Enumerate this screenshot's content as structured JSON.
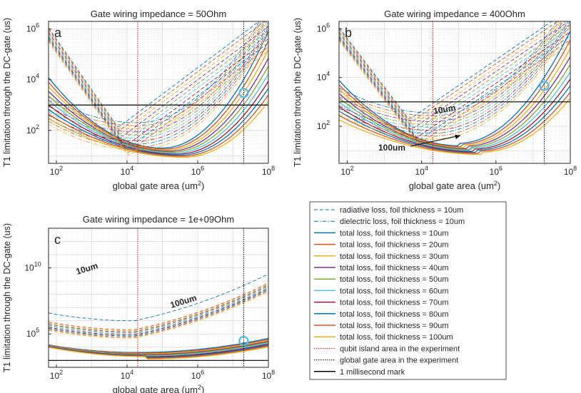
{
  "chart_data": [
    {
      "type": "line",
      "panel_letter": "a",
      "title": "Gate wiring impedance = 50Ohm",
      "xlabel": "global gate area (um^2)",
      "ylabel": "T1 limitation through the DC-gate (us)",
      "xscale": "log",
      "yscale": "log",
      "xlim": [
        60,
        100000000
      ],
      "ylim": [
        5,
        2000000
      ],
      "xticks": [
        "10^2",
        "10^4",
        "10^6",
        "10^8"
      ],
      "yticks": [
        "10^2",
        "10^4",
        "10^6"
      ],
      "grid": true,
      "vertical_lines": [
        {
          "name": "qubit island area in the experiment",
          "x": 20000
        },
        {
          "name": "global gate area in the experiment",
          "x": 20000000
        }
      ],
      "horizontal_lines": [
        {
          "name": "1 millisecond mark",
          "y": 1000
        }
      ],
      "marker": {
        "x": 20000000,
        "y": 3000
      },
      "curves": {
        "radiative": {
          "start": 400000,
          "slope_left": -2.0,
          "min_x": 10000,
          "min_y": 30,
          "slope_right": 1.0,
          "extra": [
            1.0,
            0.85,
            0.72,
            0.62,
            0.54,
            0.47,
            0.41,
            0.36,
            0.32,
            0.28
          ]
        },
        "dielectric": {
          "base_min_y": 200,
          "min_x": 30000,
          "extra": [
            1.0,
            0.72,
            0.56,
            0.46,
            0.39,
            0.34,
            0.3,
            0.27,
            0.25,
            0.23
          ]
        },
        "total": {
          "start_y": [
            12000,
            7000,
            4800,
            3600,
            2900,
            2400,
            2000,
            1750,
            1550,
            1380
          ],
          "min_y": [
            20,
            15,
            13,
            11,
            10,
            9.5,
            9,
            8.5,
            8.2,
            8
          ],
          "min_x": [
            100000,
            160000,
            220000,
            280000,
            320000,
            360000,
            400000,
            440000,
            480000,
            500000
          ],
          "end_y": [
            200000,
            120000,
            80000,
            60000,
            47000,
            38000,
            31000,
            26000,
            22000,
            19000
          ]
        }
      }
    },
    {
      "type": "line",
      "panel_letter": "b",
      "title": "Gate wiring impedance = 400Ohm",
      "xlabel": "global gate area (um^2)",
      "ylabel": "T1 limitation through the DC-gate (us)",
      "xscale": "log",
      "yscale": "log",
      "xlim": [
        60,
        100000000
      ],
      "ylim": [
        3,
        2000000
      ],
      "xticks": [
        "10^2",
        "10^4",
        "10^6",
        "10^8"
      ],
      "yticks": [
        "10^2",
        "10^4",
        "10^6"
      ],
      "grid": true,
      "annotations": [
        {
          "text": "10um",
          "color": "#0072BD"
        },
        {
          "text": "100um",
          "color": "#EDB120"
        }
      ],
      "vertical_lines": [
        {
          "name": "qubit island area in the experiment",
          "x": 20000
        },
        {
          "name": "global gate area in the experiment",
          "x": 20000000
        }
      ],
      "horizontal_lines": [
        {
          "name": "1 millisecond mark",
          "y": 1000
        }
      ],
      "marker": {
        "x": 20000000,
        "y": 4500
      }
    },
    {
      "type": "line",
      "panel_letter": "c",
      "title": "Gate wiring impedance = 1e+09Ohm",
      "xlabel": "global gate area (um^2)",
      "ylabel": "T1 limitation through the DC-gate (us)",
      "xscale": "log",
      "yscale": "log",
      "xlim": [
        60,
        100000000
      ],
      "ylim": [
        300,
        10000000000000
      ],
      "xticks": [
        "10^2",
        "10^4",
        "10^6",
        "10^8"
      ],
      "yticks": [
        "10^5",
        "10^10"
      ],
      "grid": true,
      "annotations": [
        {
          "text": "10um",
          "color": "#0072BD"
        },
        {
          "text": "100um",
          "color": "#EDB120"
        }
      ],
      "vertical_lines": [
        {
          "name": "qubit island area in the experiment",
          "x": 20000
        },
        {
          "name": "global gate area in the experiment",
          "x": 20000000
        }
      ],
      "horizontal_lines": [
        {
          "name": "1 millisecond mark",
          "y": 1000
        }
      ],
      "marker": {
        "x": 20000000,
        "y": 30000
      }
    }
  ],
  "legend": {
    "entries": [
      {
        "label": "radiative loss, foil thickness = 10um",
        "color": "#0072BD",
        "style": "dashed"
      },
      {
        "label": "dielectric loss, foil thickness = 10um",
        "color": "#0072BD",
        "style": "dashdot"
      },
      {
        "label": "total loss, foil thickness = 10um",
        "color": "#0072BD",
        "style": "solid"
      },
      {
        "label": "total loss, foil thickness = 20um",
        "color": "#D95319",
        "style": "solid"
      },
      {
        "label": "total loss, foil thickness = 30um",
        "color": "#EDB120",
        "style": "solid"
      },
      {
        "label": "total loss, foil thickness = 40um",
        "color": "#7E2F8E",
        "style": "solid"
      },
      {
        "label": "total loss, foil thickness = 50um",
        "color": "#77AC30",
        "style": "solid"
      },
      {
        "label": "total loss, foil thickness = 60um",
        "color": "#4DBEEE",
        "style": "solid"
      },
      {
        "label": "total loss, foil thickness = 70um",
        "color": "#A2142F",
        "style": "solid"
      },
      {
        "label": "total loss, foil thickness = 80um",
        "color": "#0072BD",
        "style": "solid"
      },
      {
        "label": "total loss, foil thickness = 90um",
        "color": "#D95319",
        "style": "solid"
      },
      {
        "label": "total loss, foil thickness = 100um",
        "color": "#EDB120",
        "style": "solid"
      },
      {
        "label": "qubit island area in the experiment",
        "color": "#FF0000",
        "style": "dotted"
      },
      {
        "label": "global gate area in the experiment",
        "color": "#000000",
        "style": "dotted"
      },
      {
        "label": "1 millisecond mark",
        "color": "#000000",
        "style": "solid"
      }
    ]
  },
  "colors": {
    "series": [
      "#0072BD",
      "#D95319",
      "#EDB120",
      "#7E2F8E",
      "#77AC30",
      "#4DBEEE",
      "#A2142F",
      "#0072BD",
      "#D95319",
      "#EDB120"
    ],
    "qubit_line": "#FF0000",
    "marker": "#4DBEEE"
  }
}
